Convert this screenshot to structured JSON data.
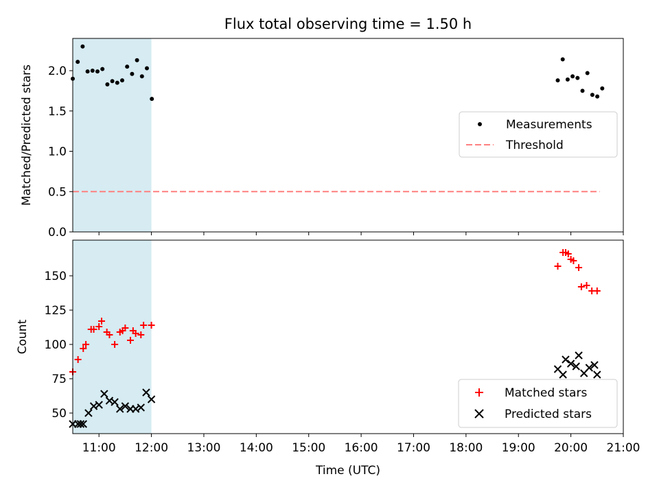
{
  "figure": {
    "title": "Flux total observing time = 1.50 h"
  },
  "chart_data": [
    {
      "type": "scatter",
      "ylabel": "Matched/Predicted stars",
      "xlim": [
        10.95,
        21.0
      ],
      "ylim": [
        0.0,
        2.4
      ],
      "yticks": [
        0.0,
        0.5,
        1.0,
        1.5,
        2.0
      ],
      "ytick_labels": [
        "0.0",
        "0.5",
        "1.0",
        "1.5",
        "2.0"
      ],
      "shaded_span": {
        "x": [
          10.5,
          12.0
        ],
        "color": "#add8e6"
      },
      "legend": {
        "position": "center-right",
        "entries": [
          "Measurements",
          "Threshold"
        ]
      },
      "threshold": {
        "name": "Threshold",
        "value": 0.5,
        "x": [
          10.5,
          20.55
        ],
        "color": "#ff7f7f",
        "style": "dashed"
      },
      "measurements": {
        "name": "Measurements",
        "color": "#000000",
        "x": [
          10.5,
          10.6,
          10.7,
          10.8,
          10.9,
          11.0,
          11.1,
          11.2,
          11.3,
          11.4,
          11.5,
          11.6,
          11.7,
          11.8,
          11.9,
          12.0,
          12.1,
          19.8,
          19.9,
          20.0,
          20.1,
          20.2,
          20.3,
          20.4,
          20.5,
          20.6,
          20.7
        ],
        "y": [
          1.9,
          2.11,
          2.3,
          1.99,
          2.0,
          1.99,
          2.02,
          1.83,
          1.87,
          1.85,
          1.88,
          2.05,
          1.96,
          2.13,
          1.93,
          2.03,
          1.65,
          1.88,
          2.14,
          1.89,
          1.93,
          1.91,
          1.75,
          1.97,
          1.7,
          1.68,
          1.78
        ]
      }
    },
    {
      "type": "scatter",
      "ylabel": "Count",
      "xlabel": "Time (UTC)",
      "xlim": [
        10.5,
        21.0
      ],
      "ylim": [
        35,
        176
      ],
      "yticks": [
        50,
        75,
        100,
        125,
        150
      ],
      "ytick_labels": [
        "50",
        "75",
        "100",
        "125",
        "150"
      ],
      "xticks": [
        11,
        12,
        13,
        14,
        15,
        16,
        17,
        18,
        19,
        20,
        21
      ],
      "xtick_labels": [
        "11:00",
        "12:00",
        "13:00",
        "14:00",
        "15:00",
        "16:00",
        "17:00",
        "18:00",
        "19:00",
        "20:00",
        "21:00"
      ],
      "shaded_span": {
        "x": [
          10.5,
          12.0
        ],
        "color": "#add8e6"
      },
      "legend": {
        "position": "bottom-right",
        "entries": [
          "Matched stars",
          "Predicted stars"
        ]
      },
      "series": [
        {
          "name": "Matched stars",
          "marker": "plus",
          "color": "#ff0000",
          "x": [
            10.5,
            10.6,
            10.7,
            10.75,
            10.85,
            10.9,
            11.0,
            11.05,
            11.15,
            11.2,
            11.3,
            11.4,
            11.45,
            11.5,
            11.6,
            11.65,
            11.7,
            11.8,
            11.85,
            12.0,
            19.75,
            19.85,
            19.9,
            19.95,
            20.0,
            20.05,
            20.15,
            20.2,
            20.3,
            20.4,
            20.5
          ],
          "y": [
            80,
            89,
            97,
            100,
            111,
            111,
            113,
            117,
            109,
            107,
            100,
            109,
            110,
            112,
            103,
            110,
            108,
            107,
            114,
            114,
            157,
            167,
            167,
            166,
            162,
            161,
            156,
            142,
            143,
            139,
            139
          ]
        },
        {
          "name": "Predicted stars",
          "marker": "x",
          "color": "#000000",
          "x": [
            10.5,
            10.6,
            10.65,
            10.7,
            10.8,
            10.9,
            11.0,
            11.1,
            11.2,
            11.3,
            11.4,
            11.5,
            11.6,
            11.7,
            11.8,
            11.9,
            12.0,
            19.75,
            19.85,
            19.9,
            20.0,
            20.1,
            20.15,
            20.25,
            20.35,
            20.45,
            20.5
          ],
          "y": [
            42,
            42,
            42,
            42,
            50,
            55,
            56,
            64,
            59,
            58,
            53,
            55,
            53,
            53,
            54,
            65,
            60,
            82,
            78,
            89,
            86,
            84,
            92,
            79,
            83,
            85,
            78
          ]
        }
      ]
    }
  ]
}
